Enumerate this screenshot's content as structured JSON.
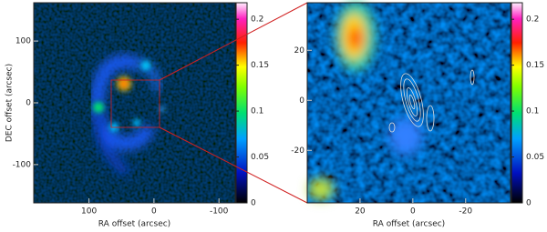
{
  "chart_data": [
    {
      "type": "heatmap",
      "xlabel": "RA offset (arcsec)",
      "ylabel": "DEC offset (arcsec)",
      "xlim": [
        185,
        -125
      ],
      "ylim": [
        -162,
        162
      ],
      "xticks": [
        100,
        0,
        -100
      ],
      "yticks": [
        -100,
        0,
        100
      ],
      "clim": [
        0,
        0.218
      ],
      "cticks": [
        0,
        0.05,
        0.1,
        0.15,
        0.2
      ]
    },
    {
      "type": "heatmap",
      "xlabel": "RA offset (arcsec)",
      "xlim": [
        40,
        -37
      ],
      "ylim": [
        -41,
        39
      ],
      "xticks": [
        20,
        0,
        -20
      ],
      "yticks": [
        -20,
        0,
        20
      ],
      "clim": [
        0,
        0.218
      ],
      "cticks": [
        0,
        0.05,
        0.1,
        0.15,
        0.2
      ]
    }
  ]
}
